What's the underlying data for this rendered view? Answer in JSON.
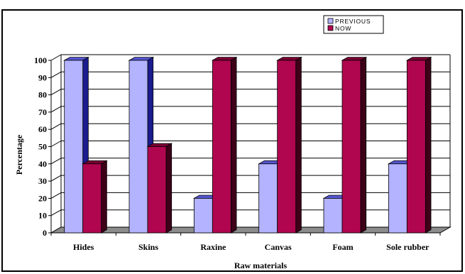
{
  "chart_data": {
    "type": "bar",
    "categories": [
      "Hides",
      "Skins",
      "Raxine",
      "Canvas",
      "Foam",
      "Sole rubber"
    ],
    "series": [
      {
        "name": "PREVIOUS",
        "values": [
          100,
          100,
          20,
          40,
          20,
          40
        ]
      },
      {
        "name": "NOW",
        "values": [
          40,
          50,
          100,
          100,
          100,
          100
        ]
      }
    ],
    "xlabel": "Raw materials",
    "ylabel": "Percentage",
    "ylim": [
      0,
      100
    ],
    "yticks": [
      0,
      10,
      20,
      30,
      40,
      50,
      60,
      70,
      80,
      90,
      100
    ],
    "grid": true,
    "legend_position": "top-right",
    "style": "3d-clustered-column",
    "colors": {
      "PREVIOUS_front": "#b3b3ff",
      "PREVIOUS_side": "#1c1c8e",
      "PREVIOUS_top": "#5555d0",
      "NOW_front": "#b0064f",
      "NOW_side": "#3d0018",
      "NOW_top": "#7a0033",
      "floor": "#8c8c8c",
      "frame": "#000000"
    }
  }
}
